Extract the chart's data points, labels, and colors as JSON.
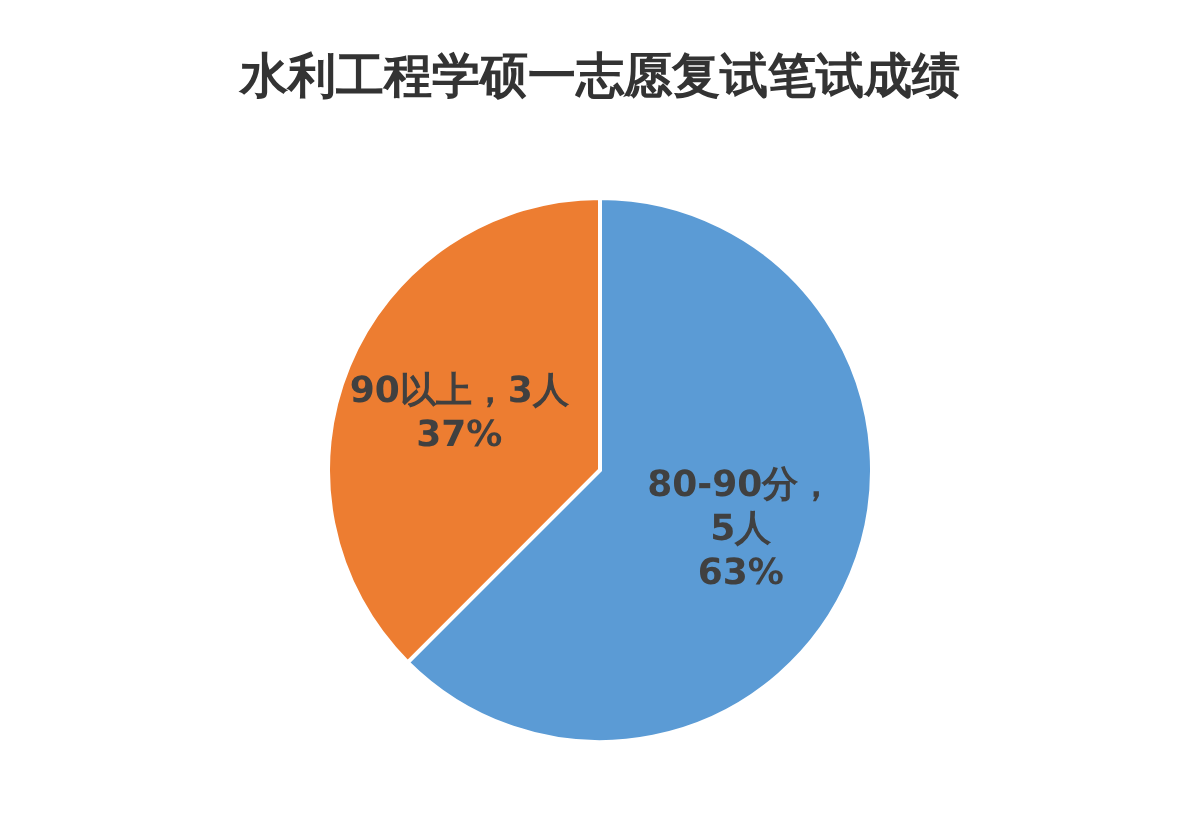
{
  "chart_data": {
    "type": "pie",
    "title": "水利工程学硕一志愿复试笔试成绩",
    "categories": [
      "80-90分",
      "90以上"
    ],
    "values": [
      5,
      3
    ],
    "colors": [
      "#5b9bd5",
      "#ed7d31"
    ],
    "value_labels": [
      "，\n5人\n63%",
      "，3人\n37%"
    ]
  }
}
